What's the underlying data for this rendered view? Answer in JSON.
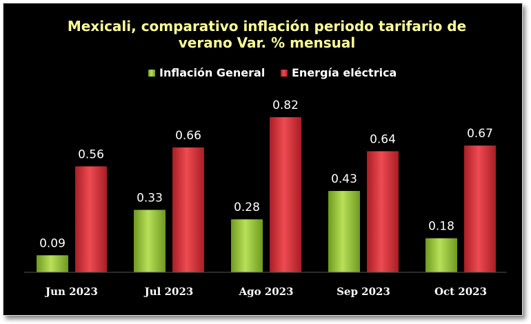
{
  "chart_data": {
    "type": "bar",
    "title": "Mexicali, comparativo inflación periodo tarifario de verano Var. % mensual",
    "title_lines": [
      "Mexicali, comparativo inflación periodo tarifario de",
      "verano Var. % mensual"
    ],
    "categories": [
      "Jun 2023",
      "Jul 2023",
      "Ago 2023",
      "Sep 2023",
      "Oct 2023"
    ],
    "series": [
      {
        "name": "Inflación General",
        "values": [
          0.09,
          0.33,
          0.28,
          0.43,
          0.18
        ],
        "color": "#9acd32"
      },
      {
        "name": "Energía eléctrica",
        "values": [
          0.56,
          0.66,
          0.82,
          0.64,
          0.67
        ],
        "color": "#d9343b"
      }
    ],
    "value_labels": [
      [
        "0.09",
        "0.33",
        "0.28",
        "0.43",
        "0.18"
      ],
      [
        "0.56",
        "0.66",
        "0.82",
        "0.64",
        "0.67"
      ]
    ],
    "xlabel": "",
    "ylabel": "",
    "ylim": [
      0,
      0.9
    ],
    "grid": false,
    "legend_position": "top",
    "background": "#000000",
    "title_color": "#ffff99"
  }
}
